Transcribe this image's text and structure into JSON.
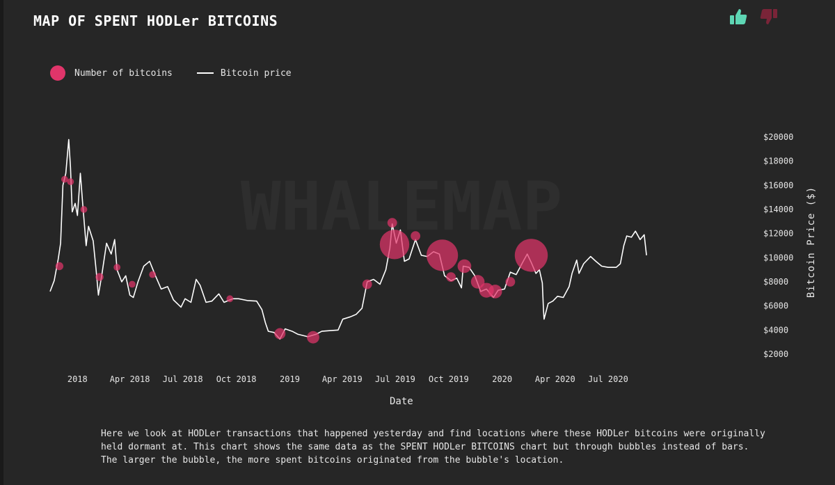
{
  "title": "MAP OF SPENT HODLer BITCOINS",
  "vote": {
    "up_icon": "thumbs-up-icon",
    "down_icon": "thumbs-down-icon",
    "up_color": "#5ed6b4",
    "down_color": "#7a2438"
  },
  "legend": {
    "bubble_label": "Number of bitcoins",
    "line_label": "Bitcoin price"
  },
  "watermark": "WHALEMAP",
  "description": "Here we look at HODLer transactions that happened yesterday and find locations where these HODLer bitcoins were originally held dormant at. This chart shows the same data as the SPENT HODLer BITCOINS chart but through bubbles instead of bars. The larger the bubble, the more spent bitcoins originated from the bubble's location.",
  "chart_data": {
    "type": "scatter",
    "title": "MAP OF SPENT HODLer BITCOINS",
    "xlabel": "Date",
    "ylabel": "Bitcoin Price ($)",
    "xlim": [
      "2017-11-15",
      "2020-09-30"
    ],
    "ylim": [
      1500,
      20500
    ],
    "x_ticks": [
      {
        "date": "2018-01-01",
        "label": "2018"
      },
      {
        "date": "2018-04-01",
        "label": "Apr 2018"
      },
      {
        "date": "2018-07-01",
        "label": "Jul 2018"
      },
      {
        "date": "2018-10-01",
        "label": "Oct 2018"
      },
      {
        "date": "2019-01-01",
        "label": "2019"
      },
      {
        "date": "2019-04-01",
        "label": "Apr 2019"
      },
      {
        "date": "2019-07-01",
        "label": "Jul 2019"
      },
      {
        "date": "2019-10-01",
        "label": "Oct 2019"
      },
      {
        "date": "2020-01-01",
        "label": "2020"
      },
      {
        "date": "2020-04-01",
        "label": "Apr 2020"
      },
      {
        "date": "2020-07-01",
        "label": "Jul 2020"
      }
    ],
    "y_ticks": [
      {
        "value": 2000,
        "label": "$2000"
      },
      {
        "value": 4000,
        "label": "$4000"
      },
      {
        "value": 6000,
        "label": "$6000"
      },
      {
        "value": 8000,
        "label": "$8000"
      },
      {
        "value": 10000,
        "label": "$10000"
      },
      {
        "value": 12000,
        "label": "$12000"
      },
      {
        "value": 14000,
        "label": "$14000"
      },
      {
        "value": 16000,
        "label": "$16000"
      },
      {
        "value": 18000,
        "label": "$18000"
      },
      {
        "value": 20000,
        "label": "$20000"
      }
    ],
    "grid": false,
    "legend_position": "top-left",
    "colors": {
      "price": "#ffffff",
      "bubble": "#e0356a"
    },
    "series": [
      {
        "name": "Bitcoin price",
        "type": "line",
        "points": [
          [
            "2017-11-15",
            7200
          ],
          [
            "2017-11-22",
            8100
          ],
          [
            "2017-11-29",
            9900
          ],
          [
            "2017-12-03",
            11200
          ],
          [
            "2017-12-07",
            16000
          ],
          [
            "2017-12-12",
            17000
          ],
          [
            "2017-12-17",
            19800
          ],
          [
            "2017-12-20",
            17500
          ],
          [
            "2017-12-23",
            13800
          ],
          [
            "2017-12-28",
            14500
          ],
          [
            "2018-01-01",
            13500
          ],
          [
            "2018-01-06",
            17000
          ],
          [
            "2018-01-10",
            14500
          ],
          [
            "2018-01-16",
            11000
          ],
          [
            "2018-01-20",
            12600
          ],
          [
            "2018-01-28",
            11400
          ],
          [
            "2018-02-02",
            9000
          ],
          [
            "2018-02-06",
            6900
          ],
          [
            "2018-02-12",
            8600
          ],
          [
            "2018-02-20",
            11200
          ],
          [
            "2018-02-28",
            10300
          ],
          [
            "2018-03-06",
            11500
          ],
          [
            "2018-03-10",
            9000
          ],
          [
            "2018-03-18",
            8000
          ],
          [
            "2018-03-25",
            8500
          ],
          [
            "2018-04-01",
            6900
          ],
          [
            "2018-04-07",
            6700
          ],
          [
            "2018-04-15",
            8000
          ],
          [
            "2018-04-25",
            9300
          ],
          [
            "2018-05-05",
            9700
          ],
          [
            "2018-05-15",
            8500
          ],
          [
            "2018-05-25",
            7400
          ],
          [
            "2018-06-05",
            7600
          ],
          [
            "2018-06-15",
            6500
          ],
          [
            "2018-06-28",
            5900
          ],
          [
            "2018-07-05",
            6600
          ],
          [
            "2018-07-15",
            6300
          ],
          [
            "2018-07-24",
            8200
          ],
          [
            "2018-07-31",
            7700
          ],
          [
            "2018-08-10",
            6300
          ],
          [
            "2018-08-20",
            6400
          ],
          [
            "2018-09-01",
            7000
          ],
          [
            "2018-09-10",
            6300
          ],
          [
            "2018-09-25",
            6600
          ],
          [
            "2018-10-05",
            6600
          ],
          [
            "2018-10-20",
            6450
          ],
          [
            "2018-11-05",
            6400
          ],
          [
            "2018-11-14",
            5700
          ],
          [
            "2018-11-20",
            4600
          ],
          [
            "2018-11-25",
            3900
          ],
          [
            "2018-12-05",
            3800
          ],
          [
            "2018-12-15",
            3250
          ],
          [
            "2018-12-24",
            4100
          ],
          [
            "2019-01-05",
            3900
          ],
          [
            "2019-01-15",
            3650
          ],
          [
            "2019-02-01",
            3450
          ],
          [
            "2019-02-15",
            3650
          ],
          [
            "2019-02-25",
            3900
          ],
          [
            "2019-03-10",
            3950
          ],
          [
            "2019-03-25",
            4000
          ],
          [
            "2019-04-02",
            4900
          ],
          [
            "2019-04-15",
            5100
          ],
          [
            "2019-04-25",
            5300
          ],
          [
            "2019-05-05",
            5800
          ],
          [
            "2019-05-14",
            8000
          ],
          [
            "2019-05-25",
            8200
          ],
          [
            "2019-06-05",
            7800
          ],
          [
            "2019-06-15",
            9000
          ],
          [
            "2019-06-22",
            10800
          ],
          [
            "2019-06-26",
            12800
          ],
          [
            "2019-07-03",
            11200
          ],
          [
            "2019-07-10",
            12300
          ],
          [
            "2019-07-17",
            9700
          ],
          [
            "2019-07-25",
            9900
          ],
          [
            "2019-08-05",
            11500
          ],
          [
            "2019-08-15",
            10200
          ],
          [
            "2019-08-25",
            10100
          ],
          [
            "2019-09-05",
            10500
          ],
          [
            "2019-09-15",
            10300
          ],
          [
            "2019-09-24",
            8500
          ],
          [
            "2019-10-05",
            8100
          ],
          [
            "2019-10-15",
            8300
          ],
          [
            "2019-10-23",
            7500
          ],
          [
            "2019-10-26",
            9300
          ],
          [
            "2019-11-05",
            9200
          ],
          [
            "2019-11-15",
            8500
          ],
          [
            "2019-11-25",
            7200
          ],
          [
            "2019-12-05",
            7400
          ],
          [
            "2019-12-17",
            6700
          ],
          [
            "2019-12-25",
            7300
          ],
          [
            "2020-01-05",
            7400
          ],
          [
            "2020-01-15",
            8800
          ],
          [
            "2020-01-25",
            8600
          ],
          [
            "2020-02-05",
            9600
          ],
          [
            "2020-02-13",
            10300
          ],
          [
            "2020-02-20",
            9600
          ],
          [
            "2020-02-28",
            8700
          ],
          [
            "2020-03-05",
            9000
          ],
          [
            "2020-03-10",
            7900
          ],
          [
            "2020-03-12",
            5600
          ],
          [
            "2020-03-13",
            4900
          ],
          [
            "2020-03-20",
            6200
          ],
          [
            "2020-03-28",
            6400
          ],
          [
            "2020-04-05",
            6800
          ],
          [
            "2020-04-15",
            6700
          ],
          [
            "2020-04-25",
            7600
          ],
          [
            "2020-04-30",
            8700
          ],
          [
            "2020-05-08",
            9800
          ],
          [
            "2020-05-12",
            8700
          ],
          [
            "2020-05-20",
            9500
          ],
          [
            "2020-06-01",
            10100
          ],
          [
            "2020-06-10",
            9700
          ],
          [
            "2020-06-20",
            9300
          ],
          [
            "2020-07-01",
            9200
          ],
          [
            "2020-07-15",
            9200
          ],
          [
            "2020-07-22",
            9500
          ],
          [
            "2020-07-28",
            11000
          ],
          [
            "2020-08-02",
            11800
          ],
          [
            "2020-08-10",
            11700
          ],
          [
            "2020-08-17",
            12200
          ],
          [
            "2020-08-25",
            11500
          ],
          [
            "2020-09-01",
            11900
          ],
          [
            "2020-09-05",
            10200
          ]
        ]
      },
      {
        "name": "Number of bitcoins",
        "type": "bubble",
        "points": [
          {
            "date": "2017-12-01",
            "price": 9300,
            "size": 2
          },
          {
            "date": "2017-12-10",
            "price": 16500,
            "size": 1.5
          },
          {
            "date": "2017-12-20",
            "price": 16300,
            "size": 1.5
          },
          {
            "date": "2018-01-12",
            "price": 14000,
            "size": 1.5
          },
          {
            "date": "2018-02-08",
            "price": 8400,
            "size": 2
          },
          {
            "date": "2018-03-10",
            "price": 9200,
            "size": 1.5
          },
          {
            "date": "2018-04-05",
            "price": 7800,
            "size": 1.5
          },
          {
            "date": "2018-05-10",
            "price": 8600,
            "size": 1.5
          },
          {
            "date": "2018-09-20",
            "price": 6600,
            "size": 1.5
          },
          {
            "date": "2018-12-15",
            "price": 3700,
            "size": 4
          },
          {
            "date": "2019-02-10",
            "price": 3400,
            "size": 5
          },
          {
            "date": "2019-05-14",
            "price": 7800,
            "size": 3
          },
          {
            "date": "2019-06-26",
            "price": 12900,
            "size": 3
          },
          {
            "date": "2019-06-30",
            "price": 11100,
            "size": 28
          },
          {
            "date": "2019-08-05",
            "price": 11800,
            "size": 3
          },
          {
            "date": "2019-09-20",
            "price": 10200,
            "size": 32
          },
          {
            "date": "2019-10-05",
            "price": 8400,
            "size": 3
          },
          {
            "date": "2019-10-28",
            "price": 9300,
            "size": 6
          },
          {
            "date": "2019-11-20",
            "price": 8000,
            "size": 6
          },
          {
            "date": "2019-12-05",
            "price": 7300,
            "size": 7
          },
          {
            "date": "2019-12-20",
            "price": 7200,
            "size": 6
          },
          {
            "date": "2020-01-15",
            "price": 8000,
            "size": 3
          },
          {
            "date": "2020-02-20",
            "price": 10200,
            "size": 35
          }
        ]
      }
    ]
  }
}
